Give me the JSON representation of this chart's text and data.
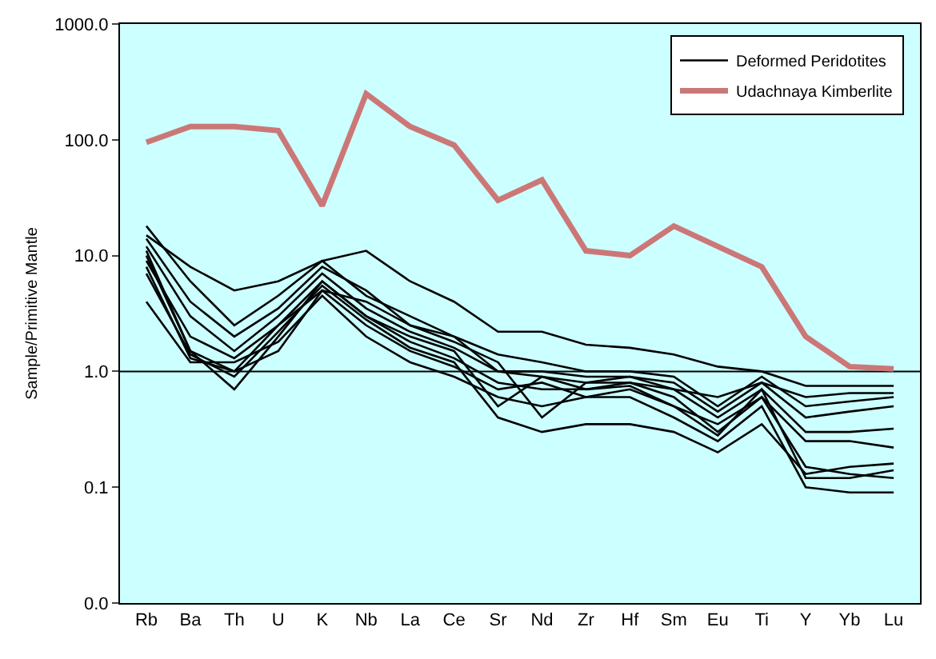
{
  "chart_data": {
    "type": "line",
    "ylabel": "Sample/Primitive Mantle",
    "categories": [
      "Rb",
      "Ba",
      "Th",
      "U",
      "K",
      "Nb",
      "La",
      "Ce",
      "Sr",
      "Nd",
      "Zr",
      "Hf",
      "Sm",
      "Eu",
      "Ti",
      "Y",
      "Yb",
      "Lu"
    ],
    "log": "y",
    "ylim": [
      0.01,
      1000
    ],
    "yticks": [
      {
        "value": 0.01,
        "label": "0.0"
      },
      {
        "value": 0.1,
        "label": "0.1"
      },
      {
        "value": 1,
        "label": "1.0"
      },
      {
        "value": 10,
        "label": "10.0"
      },
      {
        "value": 100,
        "label": "100.0"
      },
      {
        "value": 1000,
        "label": "1000.0"
      }
    ],
    "grid": false,
    "legend": "top right",
    "marker": "none",
    "line_style": "solid",
    "ref_lines": [
      {
        "axis": "y",
        "value": 1,
        "color": "#000000"
      }
    ],
    "series": [
      {
        "name": "Deformed Peridotites",
        "color": "#000000",
        "values": [
          15,
          8,
          5,
          6,
          9,
          11,
          6,
          4,
          2.2,
          2.2,
          1.7,
          1.6,
          1.4,
          1.1,
          1.0,
          0.75,
          0.75,
          0.75
        ]
      },
      {
        "color": "#000000",
        "values": [
          18,
          6,
          2.5,
          4.5,
          9,
          4.5,
          3,
          2,
          1.4,
          1.2,
          1.0,
          1.0,
          0.9,
          0.5,
          0.9,
          0.5,
          0.55,
          0.6
        ]
      },
      {
        "color": "#000000",
        "values": [
          12,
          3,
          1.5,
          3,
          7,
          3.5,
          2.2,
          1.6,
          1.0,
          0.9,
          0.8,
          0.9,
          0.8,
          0.45,
          0.8,
          0.4,
          0.45,
          0.5
        ]
      },
      {
        "color": "#000000",
        "values": [
          10,
          1.5,
          0.7,
          2,
          6,
          3,
          1.8,
          1.3,
          0.8,
          0.7,
          0.7,
          0.8,
          0.6,
          0.3,
          0.6,
          0.15,
          0.13,
          0.12
        ]
      },
      {
        "color": "#000000",
        "values": [
          8,
          1.3,
          1.0,
          2.5,
          5,
          2.5,
          1.5,
          1.1,
          0.7,
          0.8,
          0.6,
          0.7,
          0.5,
          0.28,
          0.7,
          0.12,
          0.12,
          0.14
        ]
      },
      {
        "color": "#000000",
        "values": [
          4,
          1.2,
          1.2,
          1.8,
          4.5,
          2,
          1.2,
          0.9,
          0.6,
          0.5,
          0.6,
          0.6,
          0.4,
          0.25,
          0.5,
          0.1,
          0.09,
          0.09
        ]
      },
      {
        "color": "#000000",
        "values": [
          14,
          4,
          2,
          3.5,
          8,
          5,
          2.5,
          1.8,
          1.2,
          0.4,
          0.8,
          0.8,
          0.7,
          0.6,
          0.8,
          0.6,
          0.65,
          0.65
        ]
      },
      {
        "color": "#000000",
        "values": [
          9,
          2,
          1.3,
          2.5,
          6,
          3,
          2,
          1.5,
          0.5,
          0.9,
          0.7,
          0.75,
          0.5,
          0.35,
          0.6,
          0.25,
          0.25,
          0.22
        ]
      },
      {
        "color": "#000000",
        "values": [
          11,
          1.5,
          1.0,
          1.5,
          5,
          4,
          2.5,
          2,
          1.0,
          1.0,
          0.9,
          0.9,
          0.7,
          0.4,
          0.7,
          0.3,
          0.3,
          0.32
        ]
      },
      {
        "color": "#000000",
        "values": [
          7,
          1.4,
          0.9,
          2.2,
          5.5,
          2.8,
          1.6,
          1.2,
          0.4,
          0.3,
          0.35,
          0.35,
          0.3,
          0.2,
          0.35,
          0.13,
          0.15,
          0.16
        ]
      },
      {
        "name": "Udachnaya Kimberlite",
        "color": "#cc7777",
        "values": [
          95,
          130,
          130,
          120,
          27,
          250,
          130,
          90,
          30,
          45,
          11,
          10,
          18,
          12,
          8,
          2,
          1.1,
          1.05
        ]
      }
    ]
  }
}
